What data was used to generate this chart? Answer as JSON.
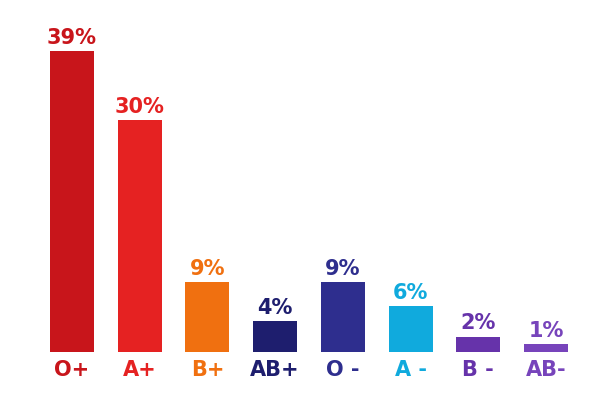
{
  "categories": [
    "O+",
    "A+",
    "B+",
    "AB+",
    "O -",
    "A -",
    "B -",
    "AB-"
  ],
  "values": [
    39,
    30,
    9,
    4,
    9,
    6,
    2,
    1
  ],
  "bar_colors": [
    "#c8151b",
    "#e52222",
    "#f07010",
    "#1e1e6e",
    "#2e2e8e",
    "#10aadd",
    "#6633aa",
    "#7744bb"
  ],
  "label_colors": [
    "#c8151b",
    "#e52222",
    "#f07010",
    "#1e1e6e",
    "#2e2e8e",
    "#10aadd",
    "#6633aa",
    "#7744bb"
  ],
  "tick_colors": [
    "#c8151b",
    "#e52222",
    "#f07010",
    "#1e1e6e",
    "#2e2e8e",
    "#10aadd",
    "#6633aa",
    "#7744bb"
  ],
  "background_color": "#ffffff",
  "ylim": [
    0,
    44
  ],
  "label_fontsize": 15,
  "tick_fontsize": 15,
  "bar_width": 0.65
}
